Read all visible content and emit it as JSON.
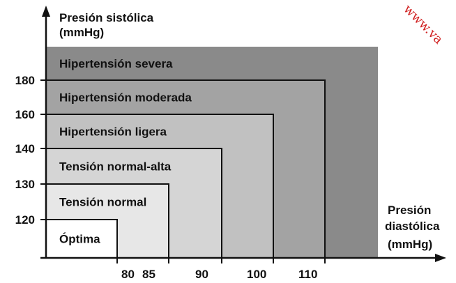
{
  "chart_data": {
    "type": "area",
    "title": "",
    "ylabel_line1": "Presión sistólica",
    "ylabel_line2": "(mmHg)",
    "xlabel_line1": "Presión",
    "xlabel_line2": "diastólica",
    "xlabel_line3": "(mmHg)",
    "y_ticks": [
      {
        "value": 120,
        "label": "120"
      },
      {
        "value": 130,
        "label": "130"
      },
      {
        "value": 140,
        "label": "140"
      },
      {
        "value": 160,
        "label": "160"
      },
      {
        "value": 180,
        "label": "180"
      }
    ],
    "x_ticks": [
      {
        "value": 80,
        "label": "80"
      },
      {
        "value": 85,
        "label": "85"
      },
      {
        "value": 90,
        "label": "90"
      },
      {
        "value": 100,
        "label": "100"
      },
      {
        "value": 110,
        "label": "110"
      }
    ],
    "categories": [
      {
        "name": "Hipertensión severa",
        "systolic_max": null,
        "diastolic_max": null,
        "color": "#8a8a8a"
      },
      {
        "name": "Hipertensión moderada",
        "systolic_max": 180,
        "diastolic_max": 110,
        "color": "#a3a3a3"
      },
      {
        "name": "Hipertensión ligera",
        "systolic_max": 160,
        "diastolic_max": 100,
        "color": "#c1c1c1"
      },
      {
        "name": "Tensión normal-alta",
        "systolic_max": 140,
        "diastolic_max": 90,
        "color": "#d5d5d5"
      },
      {
        "name": "Tensión normal",
        "systolic_max": 130,
        "diastolic_max": 85,
        "color": "#e7e7e7"
      },
      {
        "name": "Óptima",
        "systolic_max": 120,
        "diastolic_max": 80,
        "color": "#ffffff"
      }
    ]
  },
  "watermark": "www.va"
}
